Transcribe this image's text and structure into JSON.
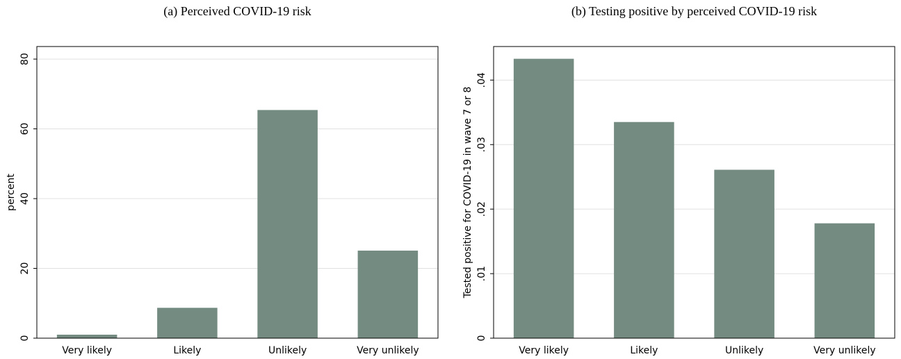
{
  "chart_data": [
    {
      "type": "bar",
      "title": "(a) Perceived COVID-19 risk",
      "ylabel": "percent",
      "categories": [
        "Very likely",
        "Likely",
        "Unlikely",
        "Very unlikely"
      ],
      "values": [
        1.0,
        8.7,
        65.4,
        25.1
      ],
      "color": "#748b81",
      "ylim": [
        0,
        83.6
      ],
      "yticks": [
        0,
        20,
        40,
        60,
        80
      ],
      "grid": true
    },
    {
      "type": "bar",
      "title": "(b) Testing positive by perceived COVID-19 risk",
      "ylabel": "Tested positive for COVID-19 in wave 7 or 8",
      "categories": [
        "Very likely",
        "Likely",
        "Unlikely",
        "Very unlikely"
      ],
      "values": [
        0.0433,
        0.0335,
        0.0261,
        0.0178
      ],
      "color": "#748b81",
      "ylim": [
        0,
        0.0452
      ],
      "yticks": [
        0,
        {
          "value": 0.01,
          "label": ".01"
        },
        {
          "value": 0.02,
          "label": ".02"
        },
        {
          "value": 0.03,
          "label": ".03"
        },
        {
          "value": 0.04,
          "label": ".04"
        }
      ],
      "grid": true
    }
  ]
}
